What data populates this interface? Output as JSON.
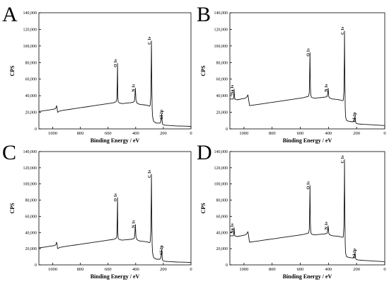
{
  "chart_data": [
    {
      "type": "line",
      "panel_label": "A",
      "xlabel": "Binding Energy / eV",
      "ylabel": "CPS",
      "xlim": [
        1100,
        0
      ],
      "ylim": [
        0,
        140000
      ],
      "x_ticks": [
        1000,
        800,
        600,
        400,
        200,
        0
      ],
      "y_ticks": [
        "0",
        "20,000",
        "40,000",
        "60,000",
        "80,000",
        "100,000",
        "120,000",
        "140,000"
      ],
      "series": [
        {
          "x": [
            1100,
            1060,
            1020,
            990,
            980,
            975,
            972,
            968,
            965,
            960,
            950,
            920,
            880,
            840,
            800,
            760,
            720,
            680,
            640,
            600,
            560,
            545,
            540,
            536,
            533,
            531,
            530,
            529,
            527,
            520,
            500,
            470,
            440,
            420,
            410,
            406,
            402,
            400,
            398,
            390,
            370,
            340,
            320,
            300,
            295,
            290,
            287,
            286,
            285,
            283,
            281,
            278,
            270,
            250,
            225,
            220,
            215,
            212,
            209,
            206,
            204,
            200,
            190,
            150,
            100,
            50,
            0
          ],
          "y": [
            21000,
            22000,
            23000,
            23800,
            24500,
            26000,
            28000,
            25000,
            20000,
            20500,
            21500,
            22500,
            23500,
            24500,
            25500,
            26500,
            27500,
            28500,
            29500,
            30500,
            31500,
            32500,
            33500,
            36000,
            55000,
            79000,
            60000,
            40000,
            33000,
            31500,
            30500,
            31000,
            31500,
            32000,
            33000,
            38000,
            49000,
            42000,
            35000,
            31000,
            29500,
            29000,
            28500,
            27500,
            28500,
            40000,
            80000,
            106000,
            90000,
            50000,
            25000,
            15000,
            9000,
            7000,
            7000,
            8000,
            12000,
            18000,
            10000,
            6000,
            5500,
            5000,
            4500,
            4000,
            3500,
            3300,
            3000
          ]
        }
      ],
      "annotations": [
        {
          "text": "O 1s",
          "x": 531,
          "y": 79000
        },
        {
          "text": "N 1s",
          "x": 402,
          "y": 49000
        },
        {
          "text": "C 1s",
          "x": 286,
          "y": 106000
        },
        {
          "text": "Cl 2p",
          "x": 200,
          "y": 18000
        }
      ]
    },
    {
      "type": "line",
      "panel_label": "B",
      "xlabel": "Binding Energy / eV",
      "ylabel": "CPS",
      "xlim": [
        1100,
        0
      ],
      "ylim": [
        0,
        140000
      ],
      "x_ticks": [
        1000,
        800,
        600,
        400,
        200,
        0
      ],
      "y_ticks": [
        "0",
        "20,000",
        "40,000",
        "60,000",
        "80,000",
        "100,000",
        "120,000",
        "140,000"
      ],
      "series": [
        {
          "x": [
            1100,
            1075,
            1072,
            1070,
            1068,
            1065,
            1050,
            1020,
            990,
            980,
            975,
            972,
            968,
            965,
            960,
            940,
            900,
            860,
            820,
            780,
            740,
            700,
            660,
            620,
            580,
            560,
            545,
            540,
            536,
            533,
            531,
            530,
            528,
            525,
            520,
            500,
            470,
            440,
            420,
            410,
            405,
            402,
            400,
            398,
            390,
            370,
            340,
            320,
            300,
            295,
            290,
            287,
            286,
            285,
            283,
            281,
            278,
            270,
            250,
            225,
            220,
            215,
            212,
            209,
            206,
            204,
            200,
            190,
            150,
            100,
            50,
            0
          ],
          "y": [
            36000,
            36000,
            40000,
            48000,
            41000,
            36000,
            35000,
            36000,
            37000,
            38500,
            40000,
            41000,
            37000,
            33000,
            28000,
            28500,
            29500,
            30500,
            31500,
            32500,
            33500,
            34500,
            35500,
            36500,
            37500,
            38500,
            39000,
            40000,
            44000,
            70000,
            92000,
            75000,
            50000,
            40000,
            38000,
            37000,
            37500,
            38000,
            38500,
            39000,
            43000,
            49000,
            44000,
            39000,
            37000,
            36000,
            35500,
            35000,
            34000,
            34500,
            45000,
            85000,
            118000,
            95000,
            55000,
            25000,
            14000,
            10000,
            9000,
            8500,
            9000,
            11000,
            15000,
            10000,
            8000,
            7000,
            6500,
            6000,
            5500,
            5000,
            4500,
            4000
          ]
        }
      ],
      "annotations": [
        {
          "text": "Na 1s",
          "x": 1070,
          "y": 48000
        },
        {
          "text": "O 1s",
          "x": 531,
          "y": 92000
        },
        {
          "text": "N 1s",
          "x": 402,
          "y": 49000
        },
        {
          "text": "C 1s",
          "x": 286,
          "y": 118000
        },
        {
          "text": "Cl 2p",
          "x": 200,
          "y": 15000
        }
      ]
    },
    {
      "type": "line",
      "panel_label": "C",
      "xlabel": "Binding Energy / eV",
      "ylabel": "CPS",
      "xlim": [
        1100,
        0
      ],
      "ylim": [
        0,
        140000
      ],
      "x_ticks": [
        1000,
        800,
        600,
        400,
        200,
        0
      ],
      "y_ticks": [
        "0",
        "20,000",
        "40,000",
        "60,000",
        "80,000",
        "100,000",
        "120,000",
        "140,000"
      ],
      "series": [
        {
          "x": [
            1100,
            1060,
            1020,
            990,
            980,
            975,
            972,
            968,
            965,
            960,
            950,
            920,
            880,
            840,
            800,
            760,
            720,
            680,
            640,
            600,
            560,
            545,
            540,
            536,
            533,
            531,
            530,
            529,
            527,
            520,
            500,
            470,
            440,
            420,
            410,
            406,
            402,
            400,
            398,
            390,
            370,
            340,
            320,
            300,
            295,
            290,
            287,
            286,
            285,
            283,
            281,
            278,
            270,
            250,
            225,
            220,
            215,
            212,
            209,
            206,
            204,
            200,
            190,
            150,
            100,
            50,
            0
          ],
          "y": [
            21000,
            22000,
            23000,
            23800,
            24500,
            26000,
            28000,
            25000,
            20000,
            20500,
            21500,
            22500,
            23500,
            24500,
            25500,
            26500,
            27500,
            28500,
            29500,
            30500,
            31500,
            32500,
            33500,
            36000,
            58000,
            83000,
            62000,
            40000,
            33000,
            31500,
            30500,
            31000,
            31500,
            32000,
            33000,
            38000,
            50000,
            42000,
            35000,
            31000,
            29500,
            29000,
            28500,
            27500,
            28500,
            42000,
            85000,
            112000,
            92000,
            50000,
            25000,
            15000,
            9000,
            7000,
            7000,
            8000,
            12000,
            19000,
            10000,
            6000,
            5500,
            5000,
            4500,
            4000,
            3500,
            3300,
            3000
          ]
        }
      ],
      "annotations": [
        {
          "text": "O 1s",
          "x": 531,
          "y": 83000
        },
        {
          "text": "N 1s",
          "x": 402,
          "y": 50000
        },
        {
          "text": "C 1s",
          "x": 286,
          "y": 112000
        },
        {
          "text": "Cl 2p",
          "x": 200,
          "y": 19000
        }
      ]
    },
    {
      "type": "line",
      "panel_label": "D",
      "xlabel": "Binding Energy / eV",
      "ylabel": "CPS",
      "xlim": [
        1100,
        0
      ],
      "ylim": [
        0,
        140000
      ],
      "x_ticks": [
        1000,
        800,
        600,
        400,
        200,
        0
      ],
      "y_ticks": [
        "0",
        "20,000",
        "40,000",
        "60,000",
        "80,000",
        "100,000",
        "120,000",
        "140,000"
      ],
      "series": [
        {
          "x": [
            1100,
            1075,
            1072,
            1070,
            1068,
            1065,
            1050,
            1020,
            990,
            980,
            975,
            972,
            968,
            965,
            960,
            940,
            900,
            860,
            820,
            780,
            740,
            700,
            660,
            620,
            580,
            560,
            545,
            540,
            536,
            533,
            531,
            530,
            528,
            525,
            520,
            500,
            470,
            440,
            420,
            410,
            405,
            402,
            400,
            398,
            390,
            370,
            340,
            320,
            300,
            295,
            290,
            287,
            286,
            285,
            283,
            281,
            278,
            270,
            250,
            225,
            220,
            215,
            212,
            209,
            206,
            204,
            200,
            190,
            150,
            100,
            50,
            0
          ],
          "y": [
            36000,
            36000,
            40000,
            46000,
            41000,
            36000,
            35000,
            36000,
            37000,
            38500,
            40000,
            41000,
            37000,
            33000,
            28000,
            28500,
            29500,
            30500,
            31500,
            32500,
            33500,
            34500,
            35500,
            36500,
            37500,
            38500,
            39000,
            40000,
            44000,
            72000,
            98000,
            78000,
            50000,
            40000,
            38000,
            37000,
            37500,
            38000,
            38500,
            39000,
            43000,
            48000,
            44000,
            39000,
            37000,
            36000,
            35500,
            35000,
            34000,
            34500,
            48000,
            95000,
            130000,
            100000,
            55000,
            25000,
            14000,
            10000,
            9000,
            8500,
            9000,
            11000,
            15000,
            10000,
            8000,
            7000,
            6500,
            6000,
            5500,
            5000,
            4500,
            4000
          ]
        }
      ],
      "annotations": [
        {
          "text": "Na 1s",
          "x": 1070,
          "y": 46000
        },
        {
          "text": "O 1s",
          "x": 531,
          "y": 98000
        },
        {
          "text": "N 1s",
          "x": 402,
          "y": 48000
        },
        {
          "text": "C 1s",
          "x": 286,
          "y": 130000
        },
        {
          "text": "Cl 2p",
          "x": 200,
          "y": 15000
        }
      ]
    }
  ]
}
